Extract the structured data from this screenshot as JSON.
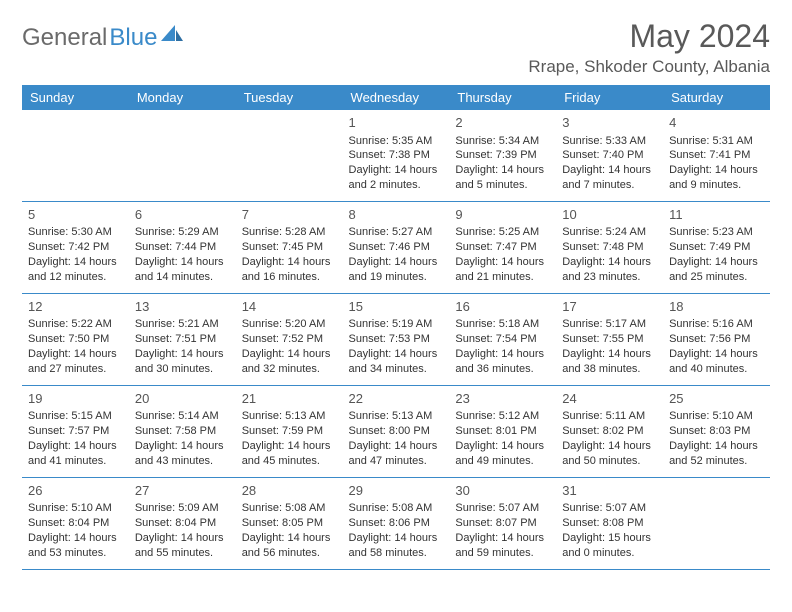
{
  "brand": {
    "part1": "General",
    "part2": "Blue"
  },
  "title": "May 2024",
  "location": "Rrape, Shkoder County, Albania",
  "colors": {
    "header_bg": "#3a8ac9",
    "header_text": "#ffffff",
    "body_text": "#333333",
    "title_text": "#595959",
    "border": "#3a8ac9",
    "background": "#ffffff"
  },
  "weekdays": [
    "Sunday",
    "Monday",
    "Tuesday",
    "Wednesday",
    "Thursday",
    "Friday",
    "Saturday"
  ],
  "weeks": [
    [
      null,
      null,
      null,
      {
        "d": "1",
        "sr": "5:35 AM",
        "ss": "7:38 PM",
        "dl": "14 hours and 2 minutes."
      },
      {
        "d": "2",
        "sr": "5:34 AM",
        "ss": "7:39 PM",
        "dl": "14 hours and 5 minutes."
      },
      {
        "d": "3",
        "sr": "5:33 AM",
        "ss": "7:40 PM",
        "dl": "14 hours and 7 minutes."
      },
      {
        "d": "4",
        "sr": "5:31 AM",
        "ss": "7:41 PM",
        "dl": "14 hours and 9 minutes."
      }
    ],
    [
      {
        "d": "5",
        "sr": "5:30 AM",
        "ss": "7:42 PM",
        "dl": "14 hours and 12 minutes."
      },
      {
        "d": "6",
        "sr": "5:29 AM",
        "ss": "7:44 PM",
        "dl": "14 hours and 14 minutes."
      },
      {
        "d": "7",
        "sr": "5:28 AM",
        "ss": "7:45 PM",
        "dl": "14 hours and 16 minutes."
      },
      {
        "d": "8",
        "sr": "5:27 AM",
        "ss": "7:46 PM",
        "dl": "14 hours and 19 minutes."
      },
      {
        "d": "9",
        "sr": "5:25 AM",
        "ss": "7:47 PM",
        "dl": "14 hours and 21 minutes."
      },
      {
        "d": "10",
        "sr": "5:24 AM",
        "ss": "7:48 PM",
        "dl": "14 hours and 23 minutes."
      },
      {
        "d": "11",
        "sr": "5:23 AM",
        "ss": "7:49 PM",
        "dl": "14 hours and 25 minutes."
      }
    ],
    [
      {
        "d": "12",
        "sr": "5:22 AM",
        "ss": "7:50 PM",
        "dl": "14 hours and 27 minutes."
      },
      {
        "d": "13",
        "sr": "5:21 AM",
        "ss": "7:51 PM",
        "dl": "14 hours and 30 minutes."
      },
      {
        "d": "14",
        "sr": "5:20 AM",
        "ss": "7:52 PM",
        "dl": "14 hours and 32 minutes."
      },
      {
        "d": "15",
        "sr": "5:19 AM",
        "ss": "7:53 PM",
        "dl": "14 hours and 34 minutes."
      },
      {
        "d": "16",
        "sr": "5:18 AM",
        "ss": "7:54 PM",
        "dl": "14 hours and 36 minutes."
      },
      {
        "d": "17",
        "sr": "5:17 AM",
        "ss": "7:55 PM",
        "dl": "14 hours and 38 minutes."
      },
      {
        "d": "18",
        "sr": "5:16 AM",
        "ss": "7:56 PM",
        "dl": "14 hours and 40 minutes."
      }
    ],
    [
      {
        "d": "19",
        "sr": "5:15 AM",
        "ss": "7:57 PM",
        "dl": "14 hours and 41 minutes."
      },
      {
        "d": "20",
        "sr": "5:14 AM",
        "ss": "7:58 PM",
        "dl": "14 hours and 43 minutes."
      },
      {
        "d": "21",
        "sr": "5:13 AM",
        "ss": "7:59 PM",
        "dl": "14 hours and 45 minutes."
      },
      {
        "d": "22",
        "sr": "5:13 AM",
        "ss": "8:00 PM",
        "dl": "14 hours and 47 minutes."
      },
      {
        "d": "23",
        "sr": "5:12 AM",
        "ss": "8:01 PM",
        "dl": "14 hours and 49 minutes."
      },
      {
        "d": "24",
        "sr": "5:11 AM",
        "ss": "8:02 PM",
        "dl": "14 hours and 50 minutes."
      },
      {
        "d": "25",
        "sr": "5:10 AM",
        "ss": "8:03 PM",
        "dl": "14 hours and 52 minutes."
      }
    ],
    [
      {
        "d": "26",
        "sr": "5:10 AM",
        "ss": "8:04 PM",
        "dl": "14 hours and 53 minutes."
      },
      {
        "d": "27",
        "sr": "5:09 AM",
        "ss": "8:04 PM",
        "dl": "14 hours and 55 minutes."
      },
      {
        "d": "28",
        "sr": "5:08 AM",
        "ss": "8:05 PM",
        "dl": "14 hours and 56 minutes."
      },
      {
        "d": "29",
        "sr": "5:08 AM",
        "ss": "8:06 PM",
        "dl": "14 hours and 58 minutes."
      },
      {
        "d": "30",
        "sr": "5:07 AM",
        "ss": "8:07 PM",
        "dl": "14 hours and 59 minutes."
      },
      {
        "d": "31",
        "sr": "5:07 AM",
        "ss": "8:08 PM",
        "dl": "15 hours and 0 minutes."
      },
      null
    ]
  ],
  "labels": {
    "sunrise": "Sunrise: ",
    "sunset": "Sunset: ",
    "daylight": "Daylight: "
  }
}
